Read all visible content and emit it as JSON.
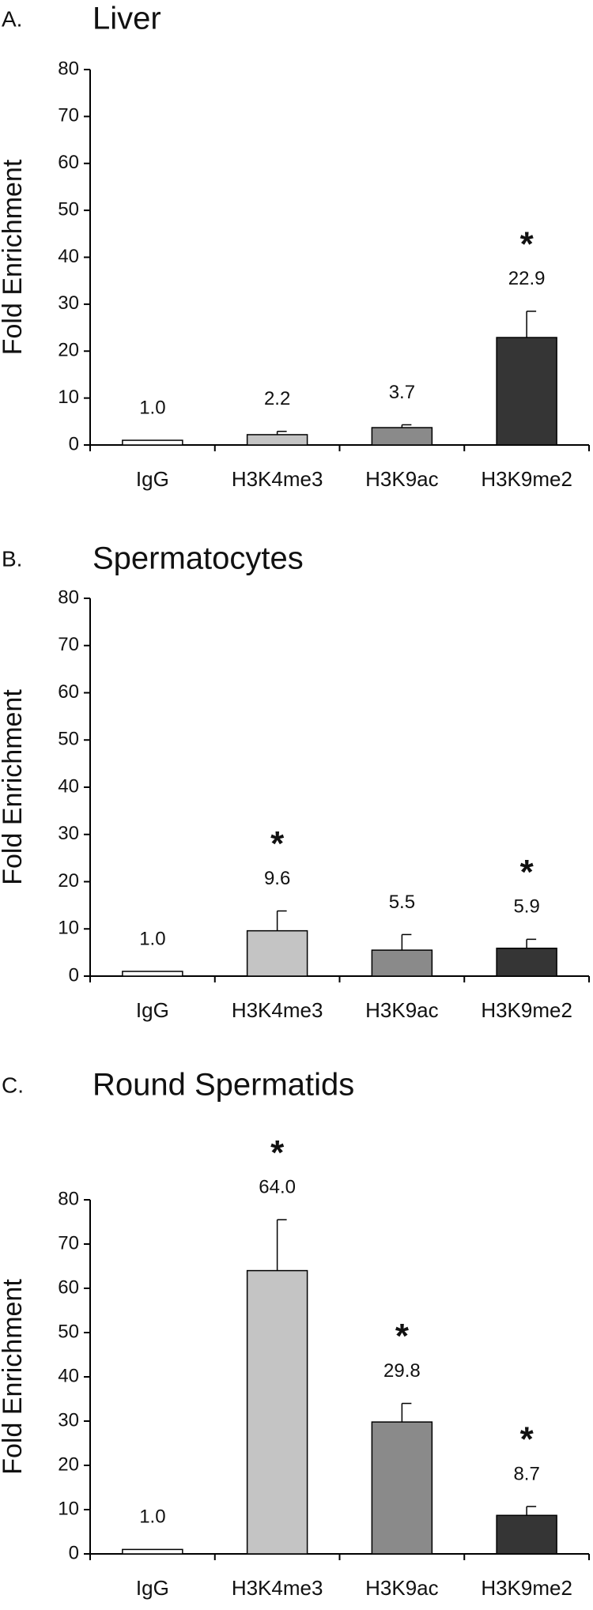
{
  "chart_data": [
    {
      "type": "bar",
      "panel": "A.",
      "title": "Liver",
      "y_label": "Fold Enrichment",
      "categories": [
        "IgG",
        "H3K4me3",
        "H3K9ac",
        "H3K9me2"
      ],
      "values": [
        1.0,
        2.2,
        3.7,
        22.9
      ],
      "value_labels": [
        "1.0",
        "2.2",
        "3.7",
        "22.9"
      ],
      "errors": [
        0,
        0.7,
        0.6,
        5.6
      ],
      "significance": [
        null,
        null,
        null,
        "*"
      ],
      "colors": [
        "#ffffff",
        "#c4c4c4",
        "#8a8a8a",
        "#353535"
      ],
      "ylim": [
        0,
        80
      ],
      "yticks": [
        0,
        10,
        20,
        30,
        40,
        50,
        60,
        70,
        80
      ]
    },
    {
      "type": "bar",
      "panel": "B.",
      "title": "Spermatocytes",
      "y_label": "Fold Enrichment",
      "categories": [
        "IgG",
        "H3K4me3",
        "H3K9ac",
        "H3K9me2"
      ],
      "values": [
        1.0,
        9.6,
        5.5,
        5.9
      ],
      "value_labels": [
        "1.0",
        "9.6",
        "5.5",
        "5.9"
      ],
      "errors": [
        0,
        4.2,
        3.3,
        1.9
      ],
      "significance": [
        null,
        "*",
        null,
        "*"
      ],
      "colors": [
        "#ffffff",
        "#c4c4c4",
        "#8a8a8a",
        "#353535"
      ],
      "ylim": [
        0,
        80
      ],
      "yticks": [
        0,
        10,
        20,
        30,
        40,
        50,
        60,
        70,
        80
      ]
    },
    {
      "type": "bar",
      "panel": "C.",
      "title": "Round Spermatids",
      "y_label": "Fold Enrichment",
      "categories": [
        "IgG",
        "H3K4me3",
        "H3K9ac",
        "H3K9me2"
      ],
      "values": [
        1.0,
        64.0,
        29.8,
        8.7
      ],
      "value_labels": [
        "1.0",
        "64.0",
        "29.8",
        "8.7"
      ],
      "errors": [
        0,
        11.5,
        4.2,
        2.0
      ],
      "significance": [
        null,
        "*",
        "*",
        "*"
      ],
      "colors": [
        "#ffffff",
        "#c4c4c4",
        "#8a8a8a",
        "#353535"
      ],
      "ylim": [
        0,
        80
      ],
      "yticks": [
        0,
        10,
        20,
        30,
        40,
        50,
        60,
        70,
        80
      ]
    }
  ]
}
